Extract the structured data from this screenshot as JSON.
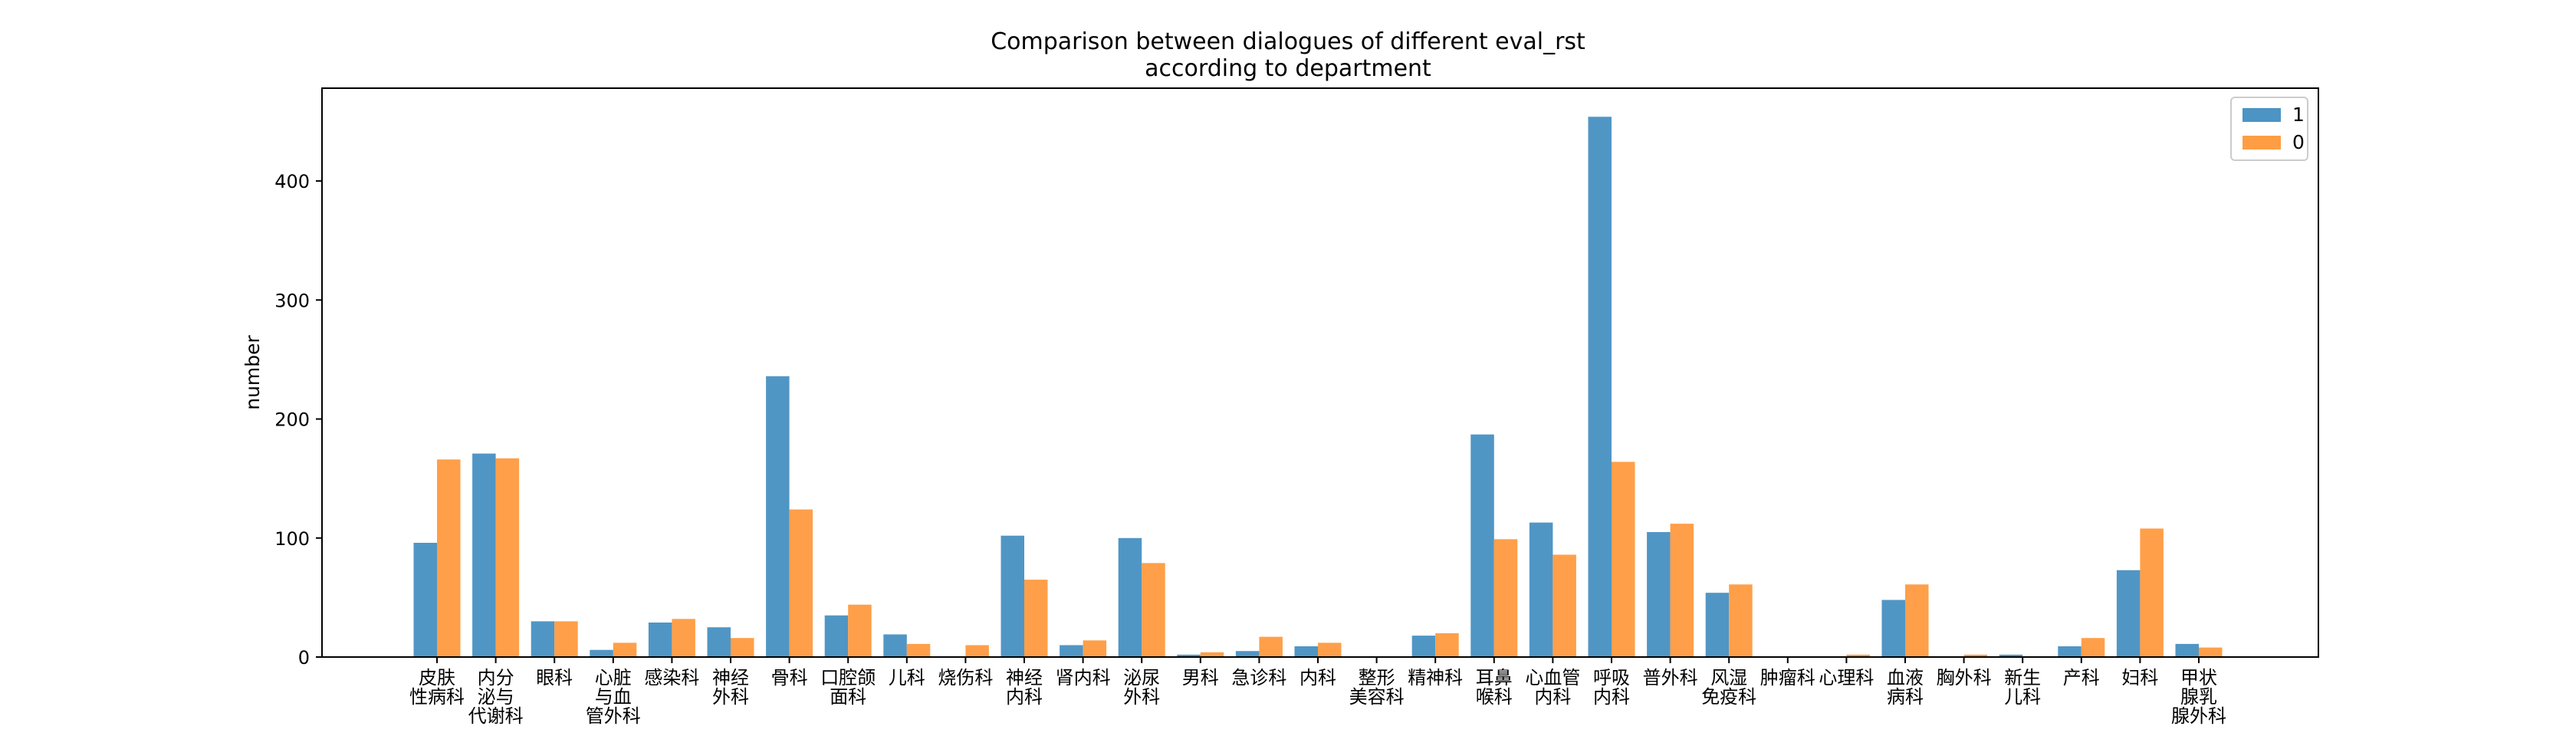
{
  "chart_data": {
    "type": "bar",
    "title_line1": "Comparison between dialogues of different eval_rst",
    "title_line2": "according to department",
    "xlabel": "",
    "ylabel": "number",
    "ylim": [
      0,
      478
    ],
    "yticks": [
      0,
      100,
      200,
      300,
      400
    ],
    "legend_position": "upper-right",
    "categories": [
      "皮肤\n性病科",
      "内分\n泌与\n代谢科",
      "眼科",
      "心脏\n与血\n管外科",
      "感染科",
      "神经\n外科",
      "骨科",
      "口腔颌\n面科",
      "儿科",
      "烧伤科",
      "神经\n内科",
      "肾内科",
      "泌尿\n外科",
      "男科",
      "急诊科",
      "内科",
      "整形\n美容科",
      "精神科",
      "耳鼻\n喉科",
      "心血管\n内科",
      "呼吸\n内科",
      "普外科",
      "风湿\n免疫科",
      "肿瘤科",
      "心理科",
      "血液\n病科",
      "胸外科",
      "新生\n儿科",
      "产科",
      "妇科",
      "甲状\n腺乳\n腺外科"
    ],
    "series": [
      {
        "name": "1",
        "color": "#4c94c4",
        "values": [
          96,
          171,
          30,
          6,
          29,
          25,
          236,
          35,
          19,
          0,
          102,
          10,
          100,
          2,
          5,
          9,
          0,
          18,
          187,
          113,
          454,
          105,
          54,
          0,
          0,
          48,
          0,
          2,
          9,
          73,
          11
        ]
      },
      {
        "name": "0",
        "color": "#ff9d45",
        "values": [
          166,
          167,
          30,
          12,
          32,
          16,
          124,
          44,
          11,
          10,
          65,
          14,
          79,
          4,
          17,
          12,
          0,
          20,
          99,
          86,
          164,
          112,
          61,
          0,
          2,
          61,
          2,
          0,
          16,
          108,
          8
        ]
      }
    ]
  }
}
